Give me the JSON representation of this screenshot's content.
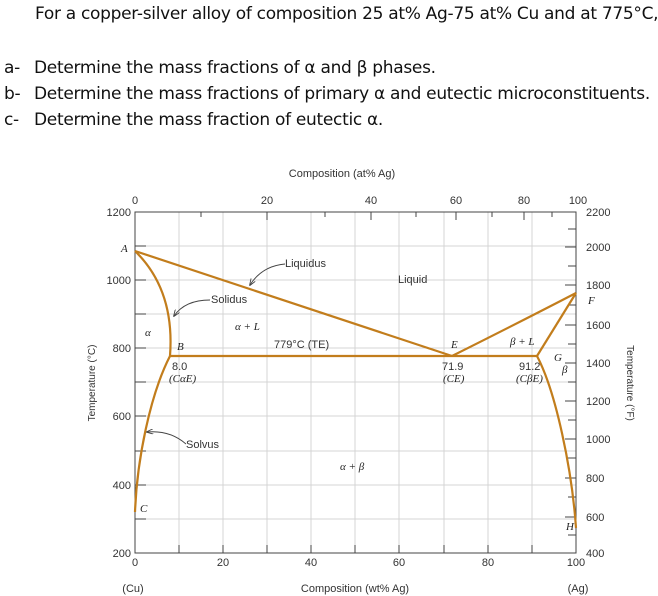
{
  "question": {
    "intro": "For a copper-silver alloy of composition 25 at% Ag-75 at% Cu and at 775°C,",
    "parts": [
      {
        "label": "a-",
        "text": "Determine the mass fractions of α and β phases."
      },
      {
        "label": "b-",
        "text": "Determine the mass fractions of primary α and eutectic microconstituents."
      },
      {
        "label": "c-",
        "text": "Determine the mass fraction of eutectic α."
      }
    ]
  },
  "diagram": {
    "top_axis_title": "Composition (at% Ag)",
    "bottom_axis_title": "Composition (wt% Ag)",
    "left_axis_title": "Temperature (°C)",
    "right_axis_title": "Temperature (°F)",
    "left_end": "(Cu)",
    "right_end": "(Ag)",
    "top_ticks": [
      "0",
      "20",
      "40",
      "60",
      "80",
      "100"
    ],
    "bottom_ticks": [
      "0",
      "20",
      "40",
      "60",
      "80",
      "100"
    ],
    "left_ticks": [
      "1200",
      "1000",
      "800",
      "600",
      "400",
      "200"
    ],
    "right_ticks": [
      "2200",
      "2000",
      "1800",
      "1600",
      "1400",
      "1200",
      "1000",
      "800",
      "600",
      "400"
    ],
    "region_labels": {
      "liquid": "Liquid",
      "alpha_l": "α + L",
      "beta_l": "β + L",
      "alpha": "α",
      "beta": "β",
      "alpha_beta": "α + β"
    },
    "curve_labels": {
      "liquidus": "Liquidus",
      "solidus": "Solidus",
      "solvus": "Solvus"
    },
    "points": {
      "A": "A",
      "B": "B",
      "C": "C",
      "E": "E",
      "F": "F",
      "G": "G",
      "H": "H"
    },
    "eutectic_temp": "779°C (TE)",
    "compositions": {
      "alpha_e_value": "8.0",
      "alpha_e_label": "(CαE)",
      "e_value": "71.9",
      "e_label": "(CE)",
      "beta_e_value": "91.2",
      "beta_e_label": "(CβE)"
    },
    "curve_color": "#c27d1c"
  }
}
